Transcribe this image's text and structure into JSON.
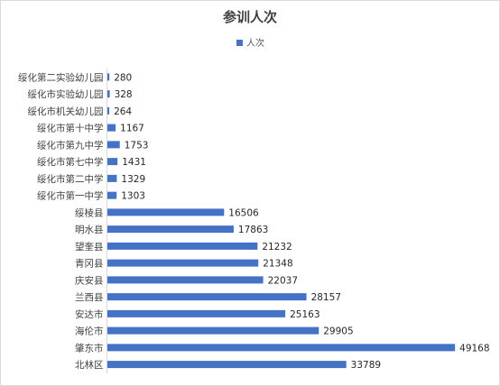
{
  "chart_data": {
    "type": "bar",
    "orientation": "horizontal",
    "title": "参训人次",
    "legend_position": "top",
    "grid": false,
    "xlim": [
      0,
      60000
    ],
    "bar_color": "#4472C4",
    "categories": [
      "绥化第二实验幼儿园",
      "绥化市实验幼儿园",
      "绥化市机关幼儿园",
      "绥化市第十中学",
      "绥化市第九中学",
      "绥化市第七中学",
      "绥化市第二中学",
      "绥化市第一中学",
      "绥棱县",
      "明水县",
      "望奎县",
      "青冈县",
      "庆安县",
      "兰西县",
      "安达市",
      "海伦市",
      "肇东市",
      "北林区"
    ],
    "series": [
      {
        "name": "人次",
        "values": [
          280,
          328,
          264,
          1167,
          1753,
          1431,
          1329,
          1303,
          16506,
          17863,
          21232,
          21348,
          22037,
          28157,
          25163,
          29905,
          49168,
          33789
        ]
      }
    ]
  }
}
